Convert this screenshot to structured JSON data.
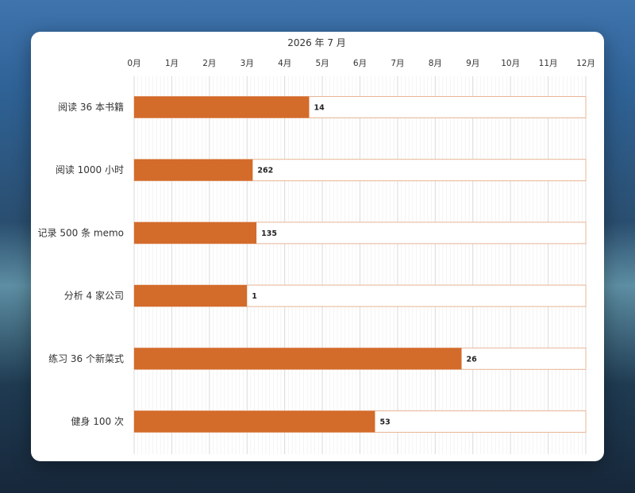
{
  "chart_data": {
    "type": "bar",
    "title": "2026 年 7 月",
    "xlabel": "",
    "ylabel": "",
    "x_tick_labels": [
      "0月",
      "1月",
      "2月",
      "3月",
      "4月",
      "5月",
      "6月",
      "7月",
      "8月",
      "9月",
      "10月",
      "11月",
      "12月"
    ],
    "xlim": [
      0,
      12
    ],
    "orientation": "horizontal",
    "grid": true,
    "legend": "none",
    "categories": [
      "阅读 36 本书籍",
      "阅读 1000 小时",
      "记录 500 条 memo",
      "分析 4 家公司",
      "练习 36 个新菜式",
      "健身 100 次"
    ],
    "series": [
      {
        "values": [
          4.65,
          3.15,
          3.25,
          3.0,
          8.7,
          6.4
        ],
        "data_labels": [
          "14",
          "262",
          "135",
          "1",
          "26",
          "53"
        ]
      }
    ],
    "target": 12,
    "colors": {
      "bar": "#d36b2b",
      "target_outline": "#e8b596",
      "grid": "#e4e4e4"
    }
  }
}
